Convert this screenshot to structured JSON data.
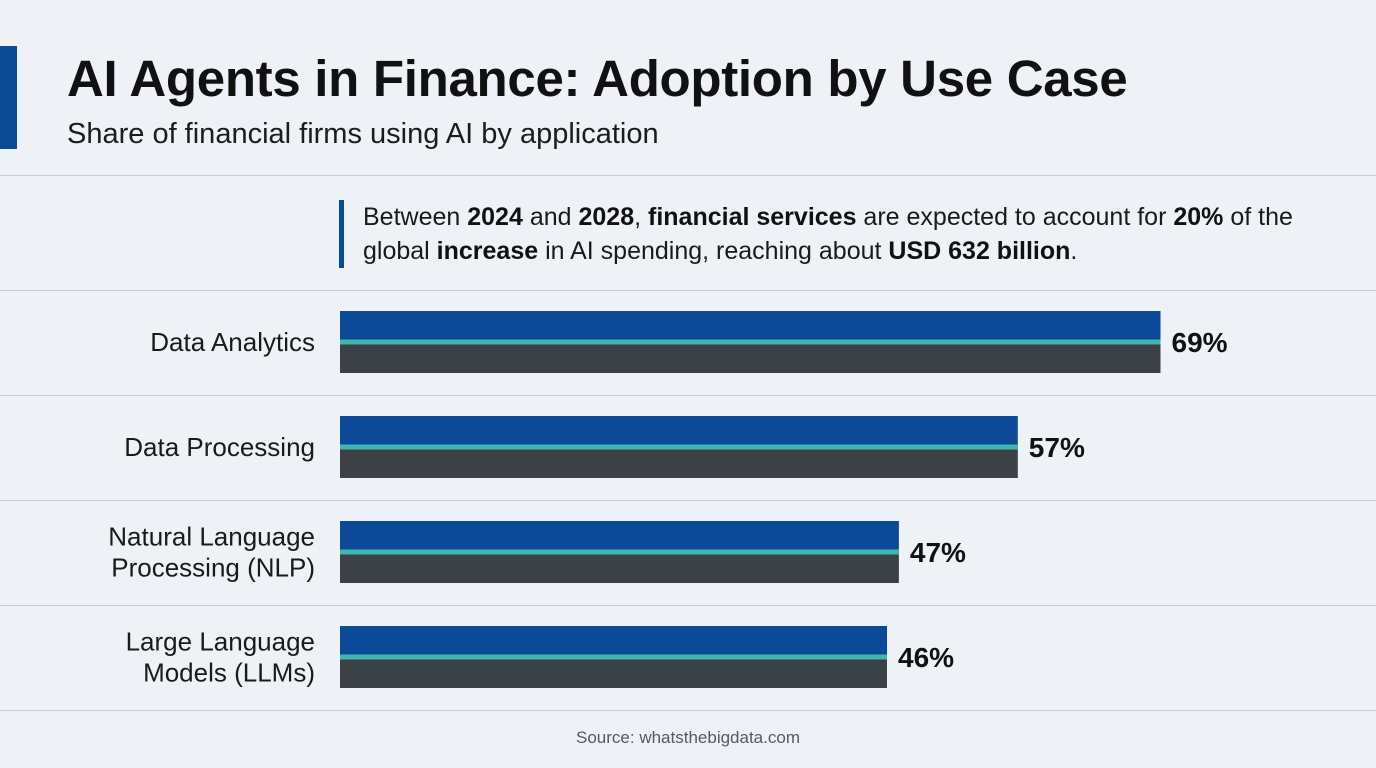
{
  "header": {
    "title": "AI Agents in Finance: Adoption by Use Case",
    "subtitle": "Share of financial firms using AI by application"
  },
  "callout": {
    "parts": [
      {
        "text": "Between ",
        "bold": false
      },
      {
        "text": "2024",
        "bold": true
      },
      {
        "text": " and ",
        "bold": false
      },
      {
        "text": "2028",
        "bold": true
      },
      {
        "text": ", ",
        "bold": false
      },
      {
        "text": "financial services",
        "bold": true
      },
      {
        "text": " are expected to account for ",
        "bold": false
      },
      {
        "text": "20%",
        "bold": true
      },
      {
        "text": " of the global ",
        "bold": false
      },
      {
        "text": "increase",
        "bold": true
      },
      {
        "text": " in AI spending, reaching about ",
        "bold": false
      },
      {
        "text": "USD 632 billion",
        "bold": true
      },
      {
        "text": ".",
        "bold": false
      }
    ]
  },
  "colors": {
    "bar_top": "#0b4a96",
    "bar_stripe": "#3fb7b0",
    "bar_bottom": "#3c4145",
    "accent": "#0b4a96"
  },
  "chart_data": {
    "type": "bar",
    "orientation": "horizontal",
    "title": "AI Agents in Finance: Adoption by Use Case",
    "subtitle": "Share of financial firms using AI by application",
    "categories": [
      [
        "Data Analytics"
      ],
      [
        "Data Processing"
      ],
      [
        "Natural Language",
        "Processing (NLP)"
      ],
      [
        "Large Language",
        "Models (LLMs)"
      ]
    ],
    "values": [
      69,
      57,
      47,
      46
    ],
    "value_labels": [
      "69%",
      "57%",
      "47%",
      "46%"
    ],
    "unit": "%",
    "xlim": [
      0,
      100
    ],
    "grid": false,
    "legend": "none"
  },
  "footer": {
    "source": "Source: whatsthebigdata.com"
  }
}
